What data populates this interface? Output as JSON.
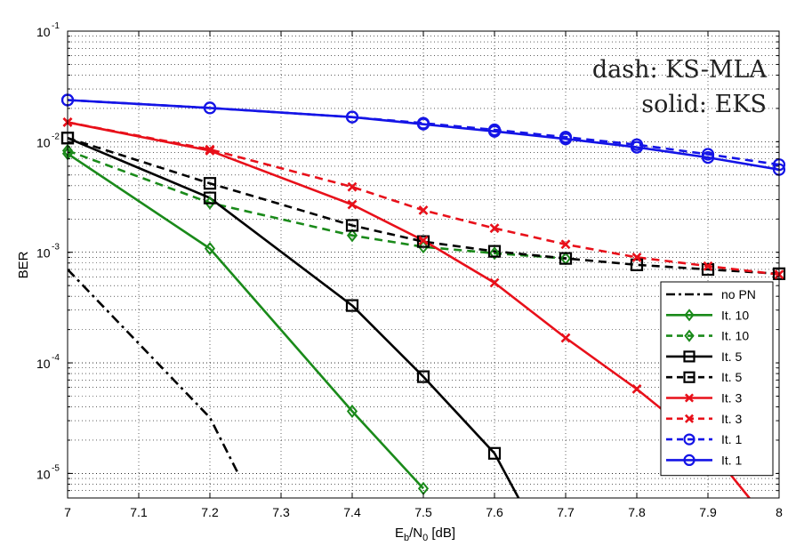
{
  "chart_data": {
    "type": "line",
    "xlabel": {
      "base": "E",
      "sub1": "b",
      "mid": "/N",
      "sub2": "0",
      "suffix": " [dB]"
    },
    "ylabel": "BER",
    "xlim": [
      7,
      8
    ],
    "ylim": [
      6e-06,
      0.1
    ],
    "yscale": "log",
    "grid": true,
    "legend_position": "bottom-right",
    "x_ticks": [
      "7",
      "7.1",
      "7.2",
      "7.3",
      "7.4",
      "7.5",
      "7.6",
      "7.7",
      "7.8",
      "7.9",
      "8"
    ],
    "y_ticks": [
      {
        "base": "10",
        "exp": "-1"
      },
      {
        "base": "10",
        "exp": "-2"
      },
      {
        "base": "10",
        "exp": "-3"
      },
      {
        "base": "10",
        "exp": "-4"
      },
      {
        "base": "10",
        "exp": "-5"
      }
    ],
    "annotations": [
      "dash: KS-MLA",
      "solid: EKS"
    ],
    "series": [
      {
        "name": "no PN",
        "color": "#000000",
        "style": "dashdot",
        "marker": "none",
        "x": [
          7.0,
          7.2,
          7.24
        ],
        "y": [
          0.0007,
          3.2e-05,
          9.9e-06
        ]
      },
      {
        "name": "It. 10",
        "color": "#1a8a1a",
        "style": "solid",
        "marker": "diamond",
        "x": [
          7.0,
          7.2,
          7.4,
          7.5
        ],
        "y": [
          0.0078,
          0.00108,
          3.65e-05,
          7.3e-06
        ]
      },
      {
        "name": "It. 10",
        "color": "#1a8a1a",
        "style": "dashed",
        "marker": "diamond",
        "x": [
          7.0,
          7.2,
          7.4,
          7.5,
          7.6,
          7.7
        ],
        "y": [
          0.0083,
          0.0028,
          0.00142,
          0.00112,
          0.00098,
          0.00088
        ]
      },
      {
        "name": "It. 5",
        "color": "#000000",
        "style": "solid",
        "marker": "square",
        "x": [
          7.0,
          7.2,
          7.4,
          7.5,
          7.6,
          7.635
        ],
        "y": [
          0.0108,
          0.0031,
          0.00033,
          7.5e-05,
          1.52e-05,
          5.8e-06
        ]
      },
      {
        "name": "It. 5",
        "color": "#000000",
        "style": "dashed",
        "marker": "square",
        "x": [
          7.0,
          7.2,
          7.4,
          7.5,
          7.6,
          7.7,
          7.8,
          7.9,
          8.0
        ],
        "y": [
          0.0108,
          0.0042,
          0.00175,
          0.00125,
          0.00102,
          0.00088,
          0.00077,
          0.0007,
          0.00064
        ]
      },
      {
        "name": "It. 3",
        "color": "#e8101a",
        "style": "solid",
        "marker": "x",
        "x": [
          7.0,
          7.2,
          7.4,
          7.5,
          7.6,
          7.7,
          7.8,
          7.9,
          7.96
        ],
        "y": [
          0.015,
          0.0083,
          0.0027,
          0.00128,
          0.00053,
          0.000168,
          5.8e-05,
          1.75e-05,
          5.8e-06
        ]
      },
      {
        "name": "It. 3",
        "color": "#e8101a",
        "style": "dashed",
        "marker": "x",
        "x": [
          7.0,
          7.2,
          7.4,
          7.5,
          7.6,
          7.7,
          7.8,
          7.9,
          8.0
        ],
        "y": [
          0.015,
          0.0085,
          0.0039,
          0.0024,
          0.00165,
          0.00118,
          0.0009,
          0.00075,
          0.00063
        ]
      },
      {
        "name": "It. 1",
        "color": "#1414e6",
        "style": "dashed",
        "marker": "circle",
        "x": [
          7.0,
          7.2,
          7.4,
          7.5,
          7.6,
          7.7,
          7.8,
          7.9,
          8.0
        ],
        "y": [
          0.0238,
          0.0202,
          0.0167,
          0.0147,
          0.0128,
          0.011,
          0.0094,
          0.0077,
          0.0062
        ]
      },
      {
        "name": "It. 1",
        "color": "#1414e6",
        "style": "solid",
        "marker": "circle",
        "x": [
          7.0,
          7.2,
          7.4,
          7.5,
          7.6,
          7.7,
          7.8,
          7.9,
          8.0
        ],
        "y": [
          0.0238,
          0.0202,
          0.0167,
          0.0144,
          0.0124,
          0.0106,
          0.0089,
          0.0072,
          0.0056
        ]
      }
    ]
  }
}
